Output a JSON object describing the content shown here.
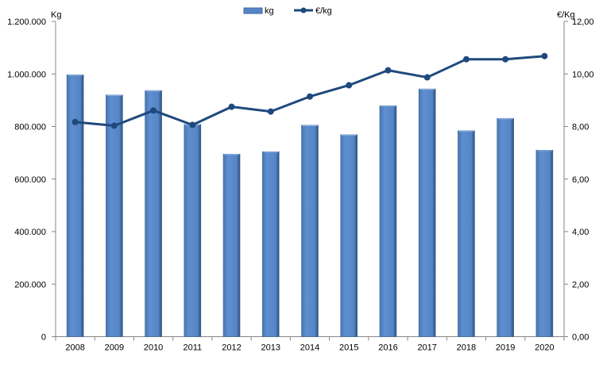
{
  "chart_data": {
    "type": "bar+line",
    "title": "",
    "categories": [
      "2008",
      "2009",
      "2010",
      "2011",
      "2012",
      "2013",
      "2014",
      "2015",
      "2016",
      "2017",
      "2018",
      "2019",
      "2020"
    ],
    "series": [
      {
        "name": "kg",
        "type": "bar",
        "axis": "left",
        "color": "#5585C5",
        "values": [
          997000,
          920000,
          937000,
          808000,
          695000,
          704000,
          805000,
          769000,
          879000,
          943000,
          784000,
          831000,
          710000
        ]
      },
      {
        "name": "€/kg",
        "type": "line",
        "axis": "right",
        "color": "#1F497D",
        "values": [
          8.17,
          8.03,
          8.61,
          8.06,
          8.75,
          8.57,
          9.14,
          9.57,
          10.14,
          9.87,
          10.56,
          10.56,
          10.68
        ]
      }
    ],
    "ylabel": "Kg",
    "y2label": "€/Kg",
    "ylim": [
      0,
      1200000
    ],
    "y2lim": [
      0,
      12
    ],
    "yticks": [
      "0",
      "200.000",
      "400.000",
      "600.000",
      "800.000",
      "1.000.000",
      "1.200.000"
    ],
    "y2ticks": [
      "0,00",
      "2,00",
      "4,00",
      "6,00",
      "8,00",
      "10,00",
      "12,00"
    ],
    "grid": false,
    "legend": "top-center"
  }
}
